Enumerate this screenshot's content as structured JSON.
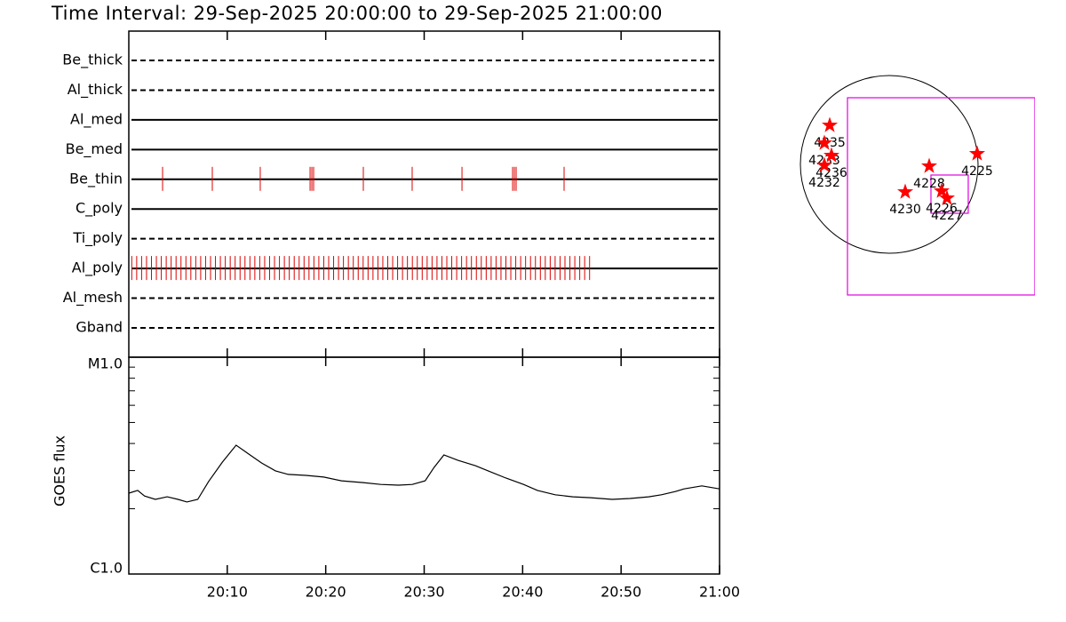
{
  "title": "Time Interval: 29-Sep-2025 20:00:00 to 29-Sep-2025 21:00:00",
  "chart_data": [
    {
      "type": "timeline",
      "categories": [
        "Be_thick",
        "Al_thick",
        "Al_med",
        "Be_med",
        "Be_thin",
        "C_poly",
        "Ti_poly",
        "Al_poly",
        "Al_mesh",
        "Gband"
      ],
      "styles": [
        "dashed",
        "dashed",
        "solid",
        "solid",
        "solid",
        "solid",
        "dashed",
        "solid",
        "dashed",
        "dashed"
      ],
      "color": "#dd0000",
      "xlim": [
        0,
        60
      ],
      "events": [
        [],
        [],
        [],
        [],
        [
          3.43,
          8.48,
          13.35,
          18.41,
          18.59,
          18.77,
          23.82,
          28.78,
          33.84,
          38.98,
          39.16,
          39.34,
          44.21
        ],
        [],
        [],
        [
          0.3,
          0.8,
          1.3,
          1.8,
          2.3,
          2.8,
          3.3,
          3.8,
          4.3,
          4.8,
          5.3,
          5.8,
          6.3,
          6.8,
          7.3,
          7.8,
          8.3,
          8.8,
          9.3,
          9.8,
          10.3,
          10.8,
          11.3,
          11.8,
          12.3,
          12.8,
          13.3,
          13.8,
          14.3,
          14.8,
          15.3,
          15.8,
          16.3,
          16.8,
          17.3,
          17.8,
          18.3,
          18.8,
          19.3,
          19.8,
          20.3,
          20.8,
          21.3,
          21.8,
          22.3,
          22.8,
          23.3,
          23.8,
          24.3,
          24.8,
          25.3,
          25.8,
          26.3,
          26.8,
          27.3,
          27.8,
          28.3,
          28.8,
          29.3,
          29.8,
          30.3,
          30.8,
          31.3,
          31.8,
          32.3,
          32.8,
          33.3,
          33.8,
          34.3,
          34.8,
          35.3,
          35.8,
          36.3,
          36.8,
          37.3,
          37.8,
          38.3,
          38.8,
          39.3,
          39.8,
          40.3,
          40.8,
          41.3,
          41.8,
          42.3,
          42.8,
          43.3,
          43.8,
          44.3,
          44.8,
          45.3,
          45.8,
          46.3,
          46.8
        ],
        [],
        []
      ]
    },
    {
      "type": "line",
      "ylabel": "GOES flux",
      "color": "#000000",
      "log": true,
      "x": [
        0,
        0.9,
        1.6,
        2.7,
        3.9,
        5.0,
        5.9,
        7.0,
        8.1,
        9.5,
        10.9,
        12.2,
        13.5,
        14.9,
        16.2,
        18.0,
        19.8,
        21.6,
        23.8,
        25.6,
        27.4,
        28.8,
        30.1,
        31.0,
        32.0,
        33.4,
        35.2,
        36.5,
        38.3,
        40.1,
        41.5,
        43.3,
        45.1,
        46.9,
        49.1,
        50.9,
        52.8,
        54.1,
        55.5,
        56.4,
        58.2,
        60.0
      ],
      "values": [
        2.36e-06,
        2.43e-06,
        2.29e-06,
        2.21e-06,
        2.27e-06,
        2.21e-06,
        2.15e-06,
        2.21e-06,
        2.67e-06,
        3.28e-06,
        3.93e-06,
        3.57e-06,
        3.25e-06,
        2.99e-06,
        2.88e-06,
        2.85e-06,
        2.8e-06,
        2.69e-06,
        2.64e-06,
        2.59e-06,
        2.57e-06,
        2.59e-06,
        2.69e-06,
        3.1e-06,
        3.54e-06,
        3.35e-06,
        3.16e-06,
        2.99e-06,
        2.77e-06,
        2.59e-06,
        2.43e-06,
        2.32e-06,
        2.27e-06,
        2.25e-06,
        2.21e-06,
        2.23e-06,
        2.27e-06,
        2.32e-06,
        2.4e-06,
        2.47e-06,
        2.55e-06,
        2.47e-06
      ],
      "ylim": [
        1e-06,
        1e-05
      ],
      "yticks": [
        {
          "value": 1e-06,
          "label": "C1.0"
        },
        {
          "value": 1e-05,
          "label": "M1.0"
        }
      ],
      "yminor": [
        2e-06,
        3e-06,
        4e-06,
        5e-06,
        6e-06,
        7e-06,
        8e-06,
        9e-06
      ],
      "xlim": [
        0,
        60
      ],
      "xticks": [
        {
          "value": 10,
          "label": "20:10"
        },
        {
          "value": 20,
          "label": "20:20"
        },
        {
          "value": 30,
          "label": "20:30"
        },
        {
          "value": 40,
          "label": "20:40"
        },
        {
          "value": 50,
          "label": "20:50"
        },
        {
          "value": 60,
          "label": "21:00"
        }
      ]
    },
    {
      "type": "map",
      "limb_radius": 960,
      "color": "#ff0000",
      "box_color": "#e000e0",
      "points": [
        {
          "label": "4235",
          "x": -643,
          "y": 422
        },
        {
          "label": "4233",
          "x": -701,
          "y": 230
        },
        {
          "label": "4236",
          "x": -624,
          "y": 96
        },
        {
          "label": "4232",
          "x": -701,
          "y": -10
        },
        {
          "label": "4225",
          "x": 950,
          "y": 115
        },
        {
          "label": "4228",
          "x": 432,
          "y": -19
        },
        {
          "label": "4230",
          "x": 173,
          "y": -298
        },
        {
          "label": "4226",
          "x": 566,
          "y": -288
        },
        {
          "label": "4227",
          "x": 624,
          "y": -365
        }
      ],
      "boxes": [
        {
          "x": [
            -451,
            1574
          ],
          "y": [
            -1411,
            720
          ]
        },
        {
          "x": [
            451,
            854
          ],
          "y": [
            -528,
            -115
          ]
        }
      ]
    }
  ]
}
